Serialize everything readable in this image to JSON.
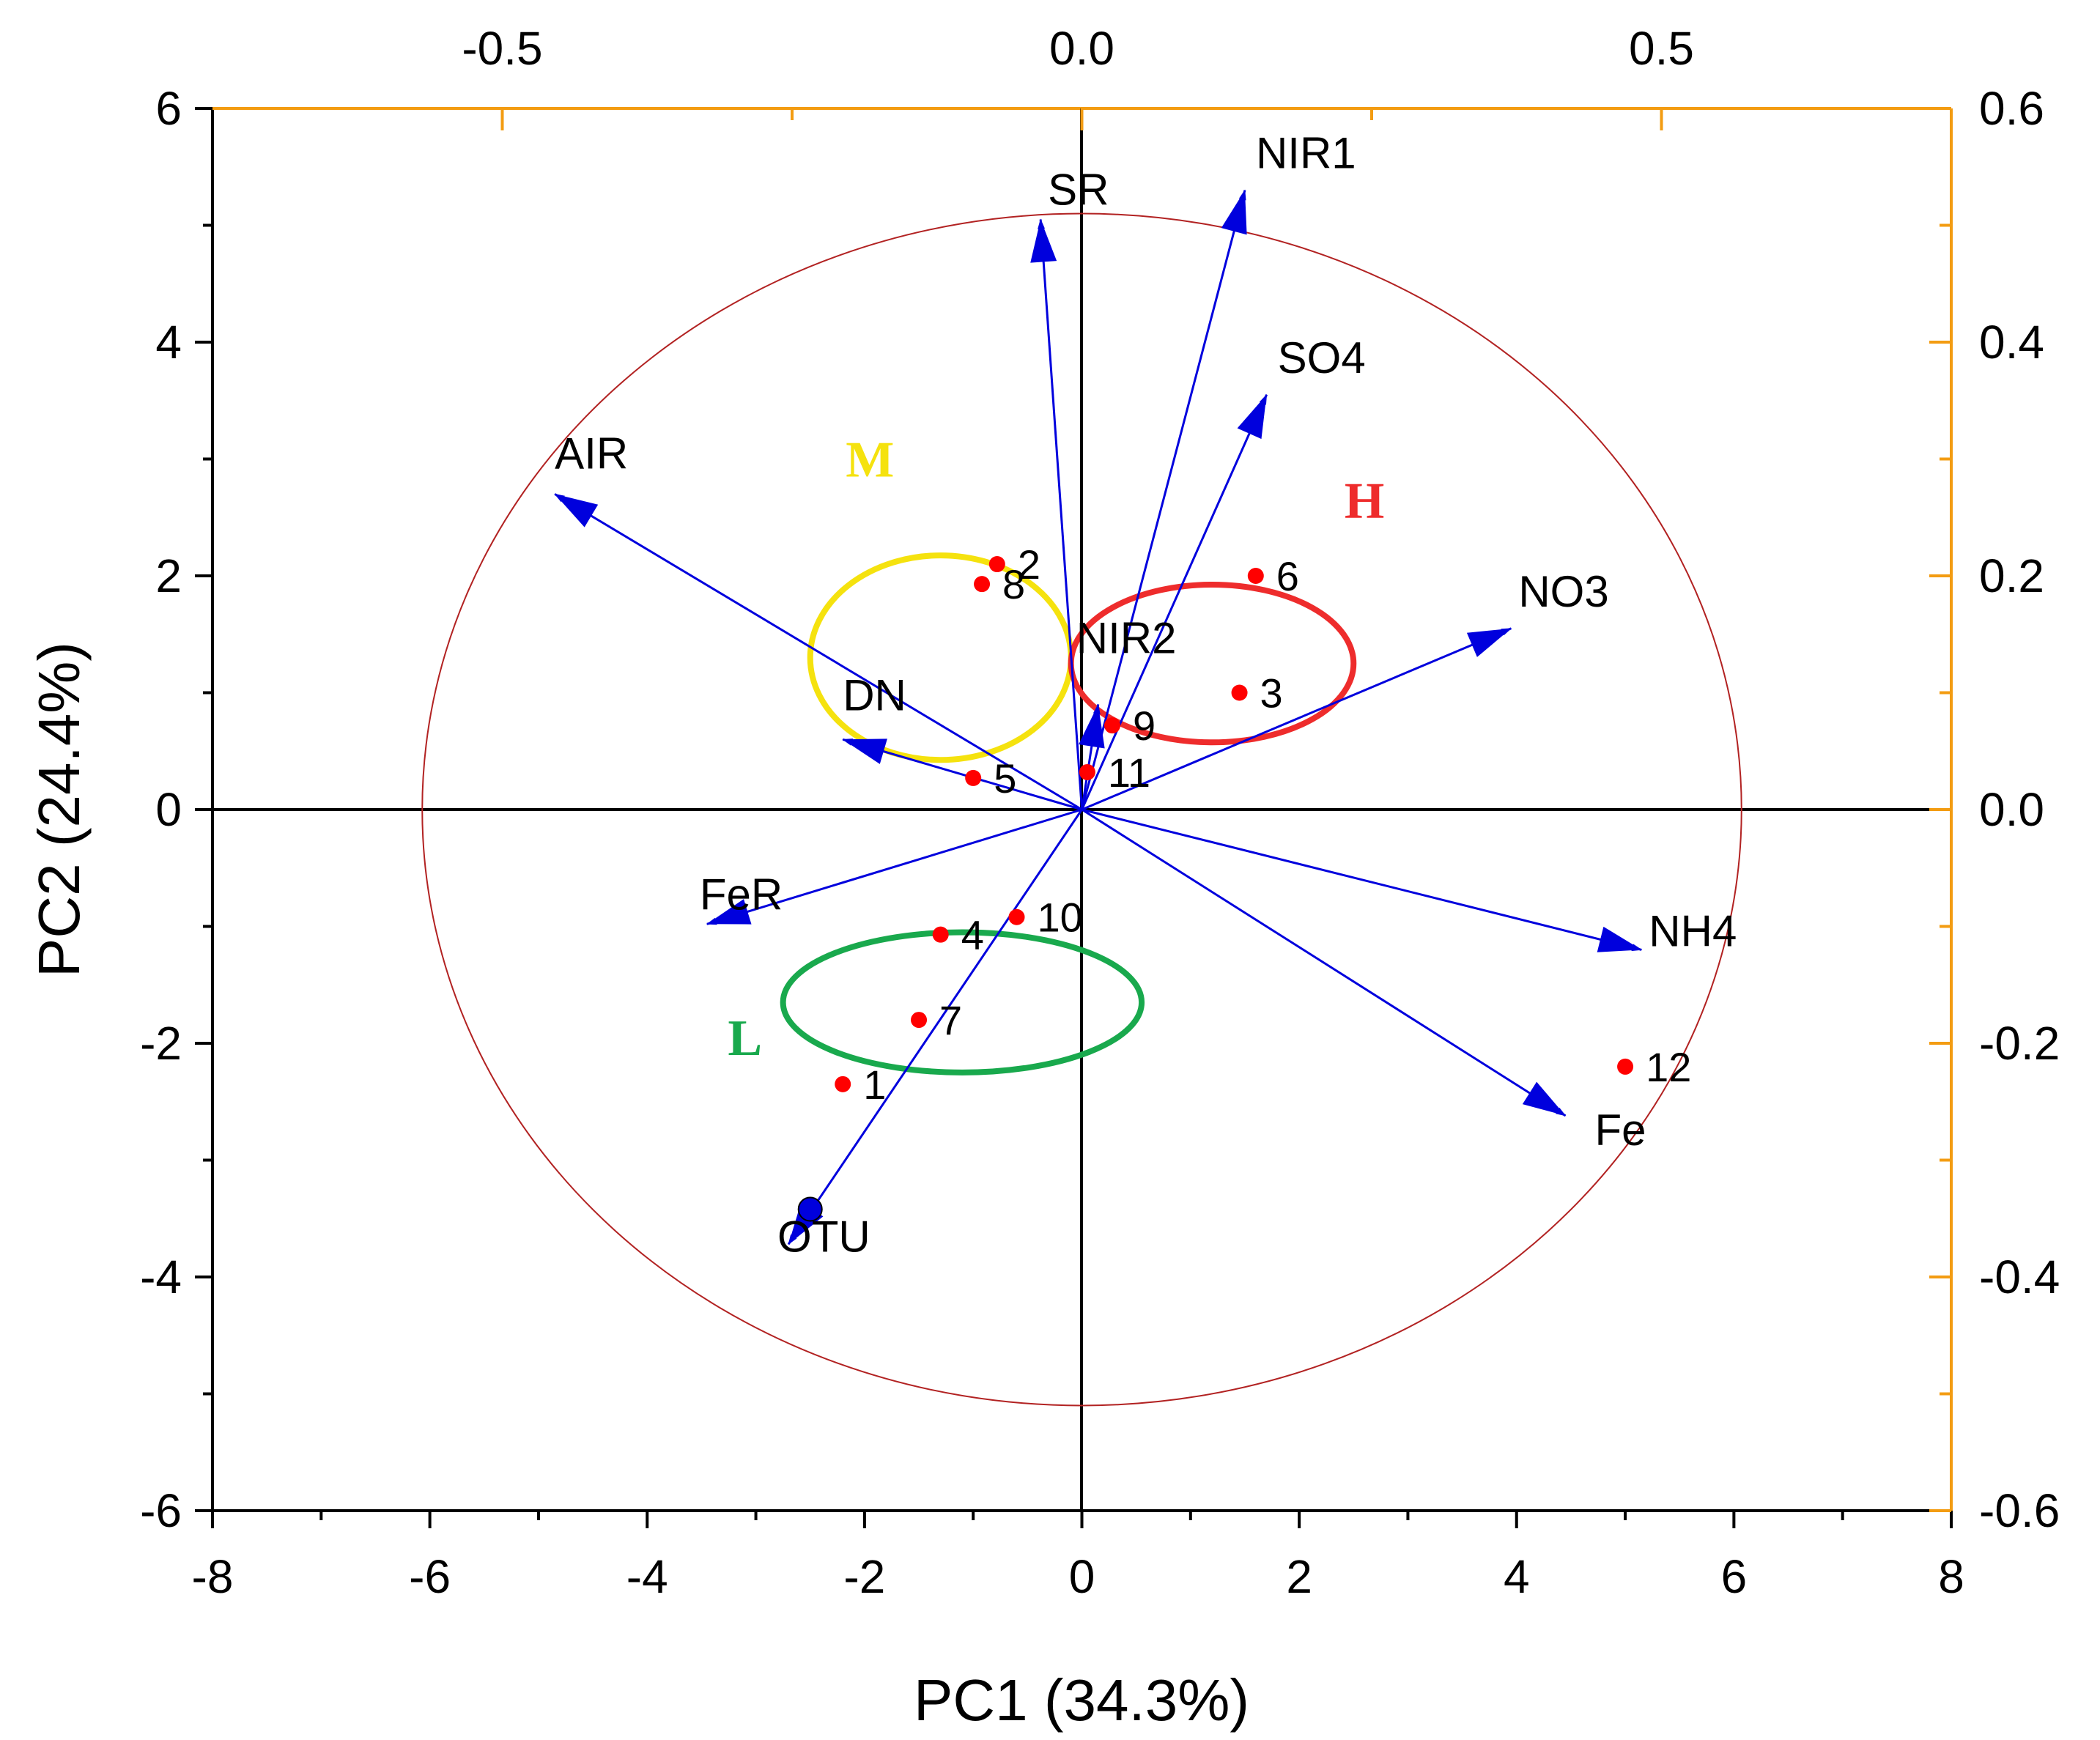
{
  "chart_data": {
    "type": "scatter",
    "subtype": "pca-biplot",
    "xlabel": "PC1 (34.3%)",
    "ylabel": "PC2 (24.4%)",
    "xlim": [
      -8,
      8
    ],
    "ylim": [
      -6,
      6
    ],
    "x_ticks": [
      "-8",
      "-6",
      "-4",
      "-2",
      "0",
      "2",
      "4",
      "6",
      "8"
    ],
    "y_ticks": [
      "-6",
      "-4",
      "-2",
      "0",
      "2",
      "4",
      "6"
    ],
    "top_axis": {
      "lim": [
        -0.75,
        0.75
      ],
      "ticks": [
        "-0.5",
        "0.0",
        "0.5"
      ],
      "color": "#f39c12"
    },
    "right_axis": {
      "lim": [
        -0.6,
        0.6
      ],
      "ticks": [
        "-0.6",
        "-0.4",
        "-0.2",
        "0.0",
        "0.2",
        "0.4",
        "0.6"
      ],
      "color": "#f39c12"
    },
    "grid": false,
    "samples": [
      {
        "label": "1",
        "x": -2.2,
        "y": -2.35
      },
      {
        "label": "2",
        "x": -0.78,
        "y": 2.1
      },
      {
        "label": "3",
        "x": 1.45,
        "y": 1.0
      },
      {
        "label": "4",
        "x": -1.3,
        "y": -1.07
      },
      {
        "label": "5",
        "x": -1.0,
        "y": 0.27
      },
      {
        "label": "6",
        "x": 1.6,
        "y": 2.0
      },
      {
        "label": "7",
        "x": -1.5,
        "y": -1.8
      },
      {
        "label": "8",
        "x": -0.92,
        "y": 1.93
      },
      {
        "label": "9",
        "x": 0.28,
        "y": 0.72
      },
      {
        "label": "10",
        "x": -0.6,
        "y": -0.92
      },
      {
        "label": "11",
        "x": 0.05,
        "y": 0.32
      },
      {
        "label": "12",
        "x": 5.0,
        "y": -2.2
      }
    ],
    "loadings": [
      {
        "label": "SR",
        "x": -0.38,
        "y": 5.05
      },
      {
        "label": "NIR1",
        "x": 1.5,
        "y": 5.3
      },
      {
        "label": "SO4",
        "x": 1.7,
        "y": 3.55
      },
      {
        "label": "AIR",
        "x": -4.85,
        "y": 2.7
      },
      {
        "label": "NO3",
        "x": 3.95,
        "y": 1.55
      },
      {
        "label": "NIR2",
        "x": 0.15,
        "y": 0.9
      },
      {
        "label": "DN",
        "x": -2.2,
        "y": 0.6
      },
      {
        "label": "FeR",
        "x": -3.45,
        "y": -0.98
      },
      {
        "label": "NH4",
        "x": 5.15,
        "y": -1.2
      },
      {
        "label": "Fe",
        "x": 4.45,
        "y": -2.62
      },
      {
        "label": "OTU",
        "x": -2.7,
        "y": -3.72
      }
    ],
    "groups": [
      {
        "label": "M",
        "color": "#f5e20e",
        "cx": -1.3,
        "cy": 1.3,
        "rx": 2.4,
        "ry": 1.75
      },
      {
        "label": "H",
        "color": "#ee2c2c",
        "cx": 1.2,
        "cy": 1.25,
        "rx": 2.6,
        "ry": 1.35
      },
      {
        "label": "L",
        "color": "#19a94d",
        "cx": -1.1,
        "cy": -1.65,
        "rx": 3.3,
        "ry": 1.2
      }
    ],
    "reference_circle": {
      "cx": 0,
      "cy": 0,
      "r_x": 6.07,
      "r_y": 5.1,
      "color": "#b22222"
    },
    "colors": {
      "sample_point": "#ff0000",
      "loading_arrow": "#0000dd",
      "axis": "#000000",
      "secondary_axis": "#f39c12"
    }
  }
}
